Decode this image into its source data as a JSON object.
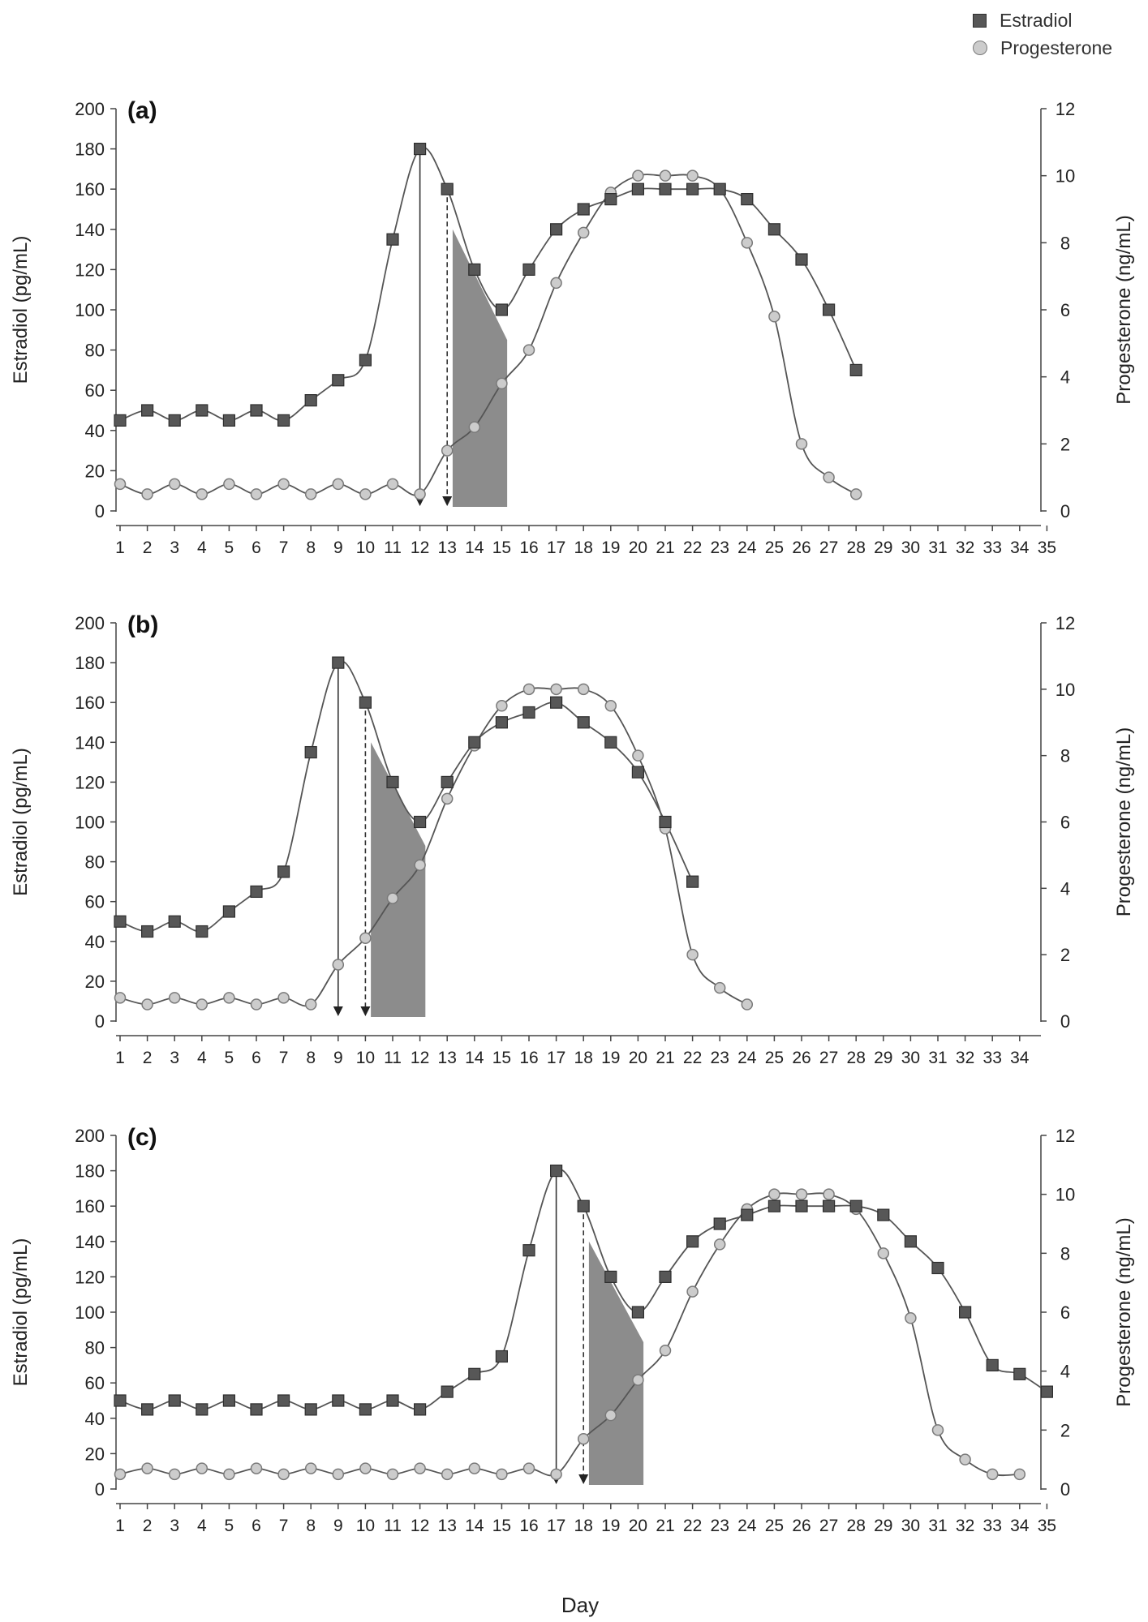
{
  "legend": {
    "estradiol": "Estradiol",
    "progesterone": "Progesterone"
  },
  "colors": {
    "estradiol_fill": "#575757",
    "estradiol_stroke": "#2e2e2e",
    "progesterone_fill": "#cccccc",
    "progesterone_stroke": "#7a7a7a",
    "line": "#555555",
    "shade": "#8c8c8c",
    "axis": "#444444"
  },
  "xlabel": "Day",
  "chart_data": [
    {
      "type": "line",
      "panel_label": "(a)",
      "title": "(a)",
      "ylabel_left": "Estradiol (pg/mL)",
      "ylabel_right": "Progesterone (ng/mL)",
      "ylim_left": [
        0,
        200
      ],
      "ylim_right": [
        0,
        12
      ],
      "yticks_left": [
        "0",
        "20",
        "40",
        "60",
        "80",
        "100",
        "120",
        "140",
        "160",
        "180",
        "200"
      ],
      "yticks_right": [
        "0",
        "2",
        "4",
        "6",
        "8",
        "10",
        "12"
      ],
      "xlim": [
        1,
        35
      ],
      "xticks": [
        "1",
        "2",
        "3",
        "4",
        "5",
        "6",
        "7",
        "8",
        "9",
        "10",
        "11",
        "12",
        "13",
        "14",
        "15",
        "16",
        "17",
        "18",
        "19",
        "20",
        "21",
        "22",
        "23",
        "24",
        "25",
        "26",
        "27",
        "28",
        "29",
        "30",
        "31",
        "32",
        "33",
        "34",
        "35"
      ],
      "series": [
        {
          "name": "Estradiol",
          "axis": "left",
          "x": [
            1,
            2,
            3,
            4,
            5,
            6,
            7,
            8,
            9,
            10,
            11,
            12,
            13,
            14,
            15,
            16,
            17,
            18,
            19,
            20,
            21,
            22,
            23,
            24,
            25,
            26,
            27,
            28
          ],
          "values": [
            45,
            50,
            45,
            50,
            45,
            50,
            45,
            55,
            65,
            75,
            135,
            180,
            160,
            120,
            100,
            120,
            140,
            150,
            155,
            160,
            160,
            160,
            160,
            155,
            140,
            125,
            100,
            70
          ]
        },
        {
          "name": "Progesterone",
          "axis": "right",
          "x": [
            1,
            2,
            3,
            4,
            5,
            6,
            7,
            8,
            9,
            10,
            11,
            12,
            13,
            14,
            15,
            16,
            17,
            18,
            19,
            20,
            21,
            22,
            23,
            24,
            25,
            26,
            27,
            28
          ],
          "values": [
            0.8,
            0.5,
            0.8,
            0.5,
            0.8,
            0.5,
            0.8,
            0.5,
            0.8,
            0.5,
            0.8,
            0.5,
            1.8,
            2.5,
            3.8,
            4.8,
            6.8,
            8.3,
            9.5,
            10,
            10,
            10,
            9.6,
            8.0,
            5.8,
            2.0,
            1.0,
            0.5
          ]
        }
      ],
      "markers": {
        "peak_day": 12,
        "post_peak_day": 13
      },
      "shaded_window": {
        "start": 13.2,
        "end": 15.2,
        "top_start": 140,
        "top_end": 85
      }
    },
    {
      "type": "line",
      "panel_label": "(b)",
      "title": "(b)",
      "ylabel_left": "Estradiol (pg/mL)",
      "ylabel_right": "Progesterone (ng/mL)",
      "ylim_left": [
        0,
        200
      ],
      "ylim_right": [
        0,
        12
      ],
      "yticks_left": [
        "0",
        "20",
        "40",
        "60",
        "80",
        "100",
        "120",
        "140",
        "160",
        "180",
        "200"
      ],
      "yticks_right": [
        "0",
        "2",
        "4",
        "6",
        "8",
        "10",
        "12"
      ],
      "xlim": [
        1,
        34
      ],
      "xticks": [
        "1",
        "2",
        "3",
        "4",
        "5",
        "6",
        "7",
        "8",
        "9",
        "10",
        "11",
        "12",
        "13",
        "14",
        "15",
        "16",
        "17",
        "18",
        "19",
        "20",
        "21",
        "22",
        "23",
        "24",
        "25",
        "26",
        "27",
        "28",
        "29",
        "30",
        "31",
        "32",
        "33",
        "34"
      ],
      "series": [
        {
          "name": "Estradiol",
          "axis": "left",
          "x": [
            1,
            2,
            3,
            4,
            5,
            6,
            7,
            8,
            9,
            10,
            11,
            12,
            13,
            14,
            15,
            16,
            17,
            18,
            19,
            20,
            21,
            22
          ],
          "values": [
            50,
            45,
            50,
            45,
            55,
            65,
            75,
            135,
            180,
            160,
            120,
            100,
            120,
            140,
            150,
            155,
            160,
            150,
            140,
            125,
            100,
            70
          ]
        },
        {
          "name": "Progesterone",
          "axis": "right",
          "x": [
            1,
            2,
            3,
            4,
            5,
            6,
            7,
            8,
            9,
            10,
            11,
            12,
            13,
            14,
            15,
            16,
            17,
            18,
            19,
            20,
            21,
            22,
            23,
            24
          ],
          "values": [
            0.7,
            0.5,
            0.7,
            0.5,
            0.7,
            0.5,
            0.7,
            0.5,
            1.7,
            2.5,
            3.7,
            4.7,
            6.7,
            8.3,
            9.5,
            10,
            10,
            10,
            9.5,
            8,
            5.8,
            2.0,
            1.0,
            0.5
          ]
        }
      ],
      "markers": {
        "peak_day": 9,
        "post_peak_day": 10
      },
      "shaded_window": {
        "start": 10.2,
        "end": 12.2,
        "top_start": 140,
        "top_end": 88
      }
    },
    {
      "type": "line",
      "panel_label": "(c)",
      "title": "(c)",
      "ylabel_left": "Estradiol (pg/mL)",
      "ylabel_right": "Progesterone (ng/mL)",
      "ylim_left": [
        0,
        200
      ],
      "ylim_right": [
        0,
        12
      ],
      "yticks_left": [
        "0",
        "20",
        "40",
        "60",
        "80",
        "100",
        "120",
        "140",
        "160",
        "180",
        "200"
      ],
      "yticks_right": [
        "0",
        "2",
        "4",
        "6",
        "8",
        "10",
        "12"
      ],
      "xlim": [
        1,
        35
      ],
      "xticks": [
        "1",
        "2",
        "3",
        "4",
        "5",
        "6",
        "7",
        "8",
        "9",
        "10",
        "11",
        "12",
        "13",
        "14",
        "15",
        "16",
        "17",
        "18",
        "19",
        "20",
        "21",
        "22",
        "23",
        "24",
        "25",
        "26",
        "27",
        "28",
        "29",
        "30",
        "31",
        "32",
        "33",
        "34",
        "35"
      ],
      "series": [
        {
          "name": "Estradiol",
          "axis": "left",
          "x": [
            1,
            2,
            3,
            4,
            5,
            6,
            7,
            8,
            9,
            10,
            11,
            12,
            13,
            14,
            15,
            16,
            17,
            18,
            19,
            20,
            21,
            22,
            23,
            24,
            25,
            26,
            27,
            28,
            29,
            30,
            31,
            32,
            33,
            34,
            35
          ],
          "values": [
            50,
            45,
            50,
            45,
            50,
            45,
            50,
            45,
            50,
            45,
            50,
            45,
            55,
            65,
            75,
            135,
            180,
            160,
            120,
            100,
            120,
            140,
            150,
            155,
            160,
            160,
            160,
            160,
            155,
            140,
            125,
            100,
            70,
            65,
            55
          ]
        },
        {
          "name": "Progesterone",
          "axis": "right",
          "x": [
            1,
            2,
            3,
            4,
            5,
            6,
            7,
            8,
            9,
            10,
            11,
            12,
            13,
            14,
            15,
            16,
            17,
            18,
            19,
            20,
            21,
            22,
            23,
            24,
            25,
            26,
            27,
            28,
            29,
            30,
            31,
            32,
            33,
            34
          ],
          "values": [
            0.5,
            0.7,
            0.5,
            0.7,
            0.5,
            0.7,
            0.5,
            0.7,
            0.5,
            0.7,
            0.5,
            0.7,
            0.5,
            0.7,
            0.5,
            0.7,
            0.5,
            1.7,
            2.5,
            3.7,
            4.7,
            6.7,
            8.3,
            9.5,
            10,
            10,
            10,
            9.5,
            8,
            5.8,
            2.0,
            1.0,
            0.5,
            0.5
          ]
        }
      ],
      "markers": {
        "peak_day": 17,
        "post_peak_day": 18
      },
      "shaded_window": {
        "start": 18.2,
        "end": 20.2,
        "top_start": 140,
        "top_end": 83
      }
    }
  ]
}
